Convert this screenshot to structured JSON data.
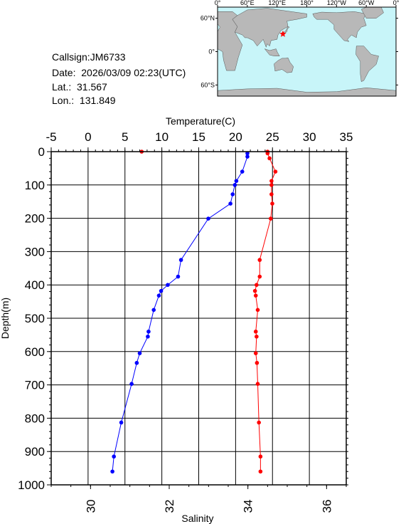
{
  "station": {
    "callsign_text": "Callsign:JM6733",
    "date_text": "Date:  2026/03/09 02:23(UTC)",
    "lat_text": "Lat.:  31.567",
    "lon_text": "Lon.:  131.849"
  },
  "map": {
    "lon_labels": [
      "0°",
      "60°E",
      "120°E",
      "180°",
      "120°W",
      "60°W",
      "0°"
    ],
    "lat_labels": [
      "60°N",
      "0°",
      "60°S"
    ],
    "ocean_color": "#c8f5f9",
    "land_color": "#b8b8b8",
    "marker_color": "#ff0000",
    "marker_icon": "star-icon"
  },
  "chart_data": {
    "type": "line",
    "title": "",
    "xlabel_top": "Temperature(C)",
    "xlabel_bottom": "Salinity",
    "ylabel": "Depth(m)",
    "temperature_lim": [
      -5,
      35
    ],
    "temperature_ticks": [
      "-5",
      "0",
      "5",
      "10",
      "15",
      "20",
      "25",
      "30",
      "35"
    ],
    "salinity_lim": [
      29,
      36.5
    ],
    "salinity_ticks": [
      "30",
      "32",
      "34",
      "36"
    ],
    "depth_lim": [
      0,
      1000
    ],
    "depth_ticks": [
      "0",
      "100",
      "200",
      "300",
      "400",
      "500",
      "600",
      "700",
      "800",
      "900",
      "1000"
    ],
    "grid": true,
    "series": [
      {
        "name": "Temperature",
        "color": "#0000ff",
        "axis": "top",
        "points": [
          {
            "value": 21.6,
            "depth": 5
          },
          {
            "value": 21.6,
            "depth": 15
          },
          {
            "value": 20.9,
            "depth": 60
          },
          {
            "value": 20.1,
            "depth": 88
          },
          {
            "value": 19.9,
            "depth": 100
          },
          {
            "value": 19.6,
            "depth": 128
          },
          {
            "value": 19.3,
            "depth": 156
          },
          {
            "value": 16.3,
            "depth": 201
          },
          {
            "value": 12.6,
            "depth": 325
          },
          {
            "value": 12.2,
            "depth": 375
          },
          {
            "value": 10.8,
            "depth": 400
          },
          {
            "value": 9.9,
            "depth": 418
          },
          {
            "value": 9.6,
            "depth": 432
          },
          {
            "value": 8.9,
            "depth": 475
          },
          {
            "value": 8.2,
            "depth": 540
          },
          {
            "value": 8.1,
            "depth": 555
          },
          {
            "value": 7.0,
            "depth": 605
          },
          {
            "value": 6.6,
            "depth": 634
          },
          {
            "value": 5.9,
            "depth": 697
          },
          {
            "value": 4.5,
            "depth": 813
          },
          {
            "value": 3.5,
            "depth": 915
          },
          {
            "value": 3.3,
            "depth": 960
          }
        ]
      },
      {
        "name": "Salinity",
        "color": "#ff0000",
        "axis": "bottom",
        "points": [
          {
            "value": 31.3,
            "depth": 0
          },
          {
            "value": 34.5,
            "depth": 0
          },
          {
            "value": 34.5,
            "depth": 5
          },
          {
            "value": 34.55,
            "depth": 20
          },
          {
            "value": 34.7,
            "depth": 60
          },
          {
            "value": 34.6,
            "depth": 88
          },
          {
            "value": 34.6,
            "depth": 100
          },
          {
            "value": 34.6,
            "depth": 128
          },
          {
            "value": 34.62,
            "depth": 156
          },
          {
            "value": 34.58,
            "depth": 201
          },
          {
            "value": 34.3,
            "depth": 325
          },
          {
            "value": 34.3,
            "depth": 375
          },
          {
            "value": 34.22,
            "depth": 400
          },
          {
            "value": 34.18,
            "depth": 418
          },
          {
            "value": 34.2,
            "depth": 432
          },
          {
            "value": 34.25,
            "depth": 475
          },
          {
            "value": 34.2,
            "depth": 540
          },
          {
            "value": 34.22,
            "depth": 555
          },
          {
            "value": 34.2,
            "depth": 605
          },
          {
            "value": 34.23,
            "depth": 634
          },
          {
            "value": 34.25,
            "depth": 697
          },
          {
            "value": 34.28,
            "depth": 813
          },
          {
            "value": 34.32,
            "depth": 915
          },
          {
            "value": 34.32,
            "depth": 960
          }
        ]
      }
    ]
  }
}
